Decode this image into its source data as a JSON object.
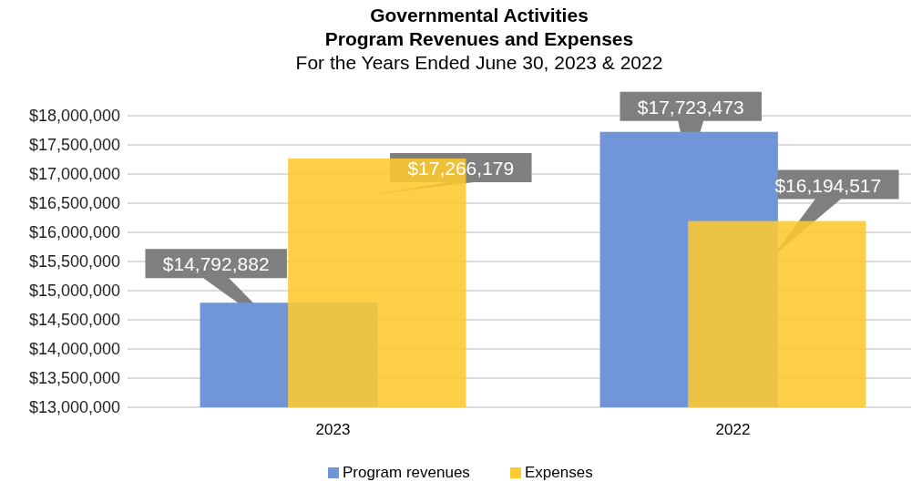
{
  "chart_data": {
    "type": "bar",
    "title": "Governmental Activities\nProgram Revenues and Expenses",
    "subtitle": "For the Years Ended June 30, 2023 & 2022",
    "categories": [
      "2023",
      "2022"
    ],
    "series": [
      {
        "name": "Program revenues",
        "color": "#7196d8",
        "values": [
          14792882,
          17723473
        ],
        "value_labels": [
          "$14,792,882",
          "$17,723,473"
        ]
      },
      {
        "name": "Expenses",
        "color": "#fdca2f",
        "values": [
          17266179,
          16194517
        ],
        "value_labels": [
          "$17,266,179",
          "$16,194,517"
        ]
      }
    ],
    "ylim": [
      13000000,
      18000000
    ],
    "yticks": [
      {
        "value": 13000000,
        "label": "$13,000,000"
      },
      {
        "value": 13500000,
        "label": "$13,500,000"
      },
      {
        "value": 14000000,
        "label": "$14,000,000"
      },
      {
        "value": 14500000,
        "label": "$14,500,000"
      },
      {
        "value": 15000000,
        "label": "$15,000,000"
      },
      {
        "value": 15500000,
        "label": "$15,500,000"
      },
      {
        "value": 16000000,
        "label": "$16,000,000"
      },
      {
        "value": 16500000,
        "label": "$16,500,000"
      },
      {
        "value": 17000000,
        "label": "$17,000,000"
      },
      {
        "value": 17500000,
        "label": "$17,500,000"
      },
      {
        "value": 18000000,
        "label": "$18,000,000"
      }
    ],
    "grid": "y",
    "legend": "bottom"
  }
}
